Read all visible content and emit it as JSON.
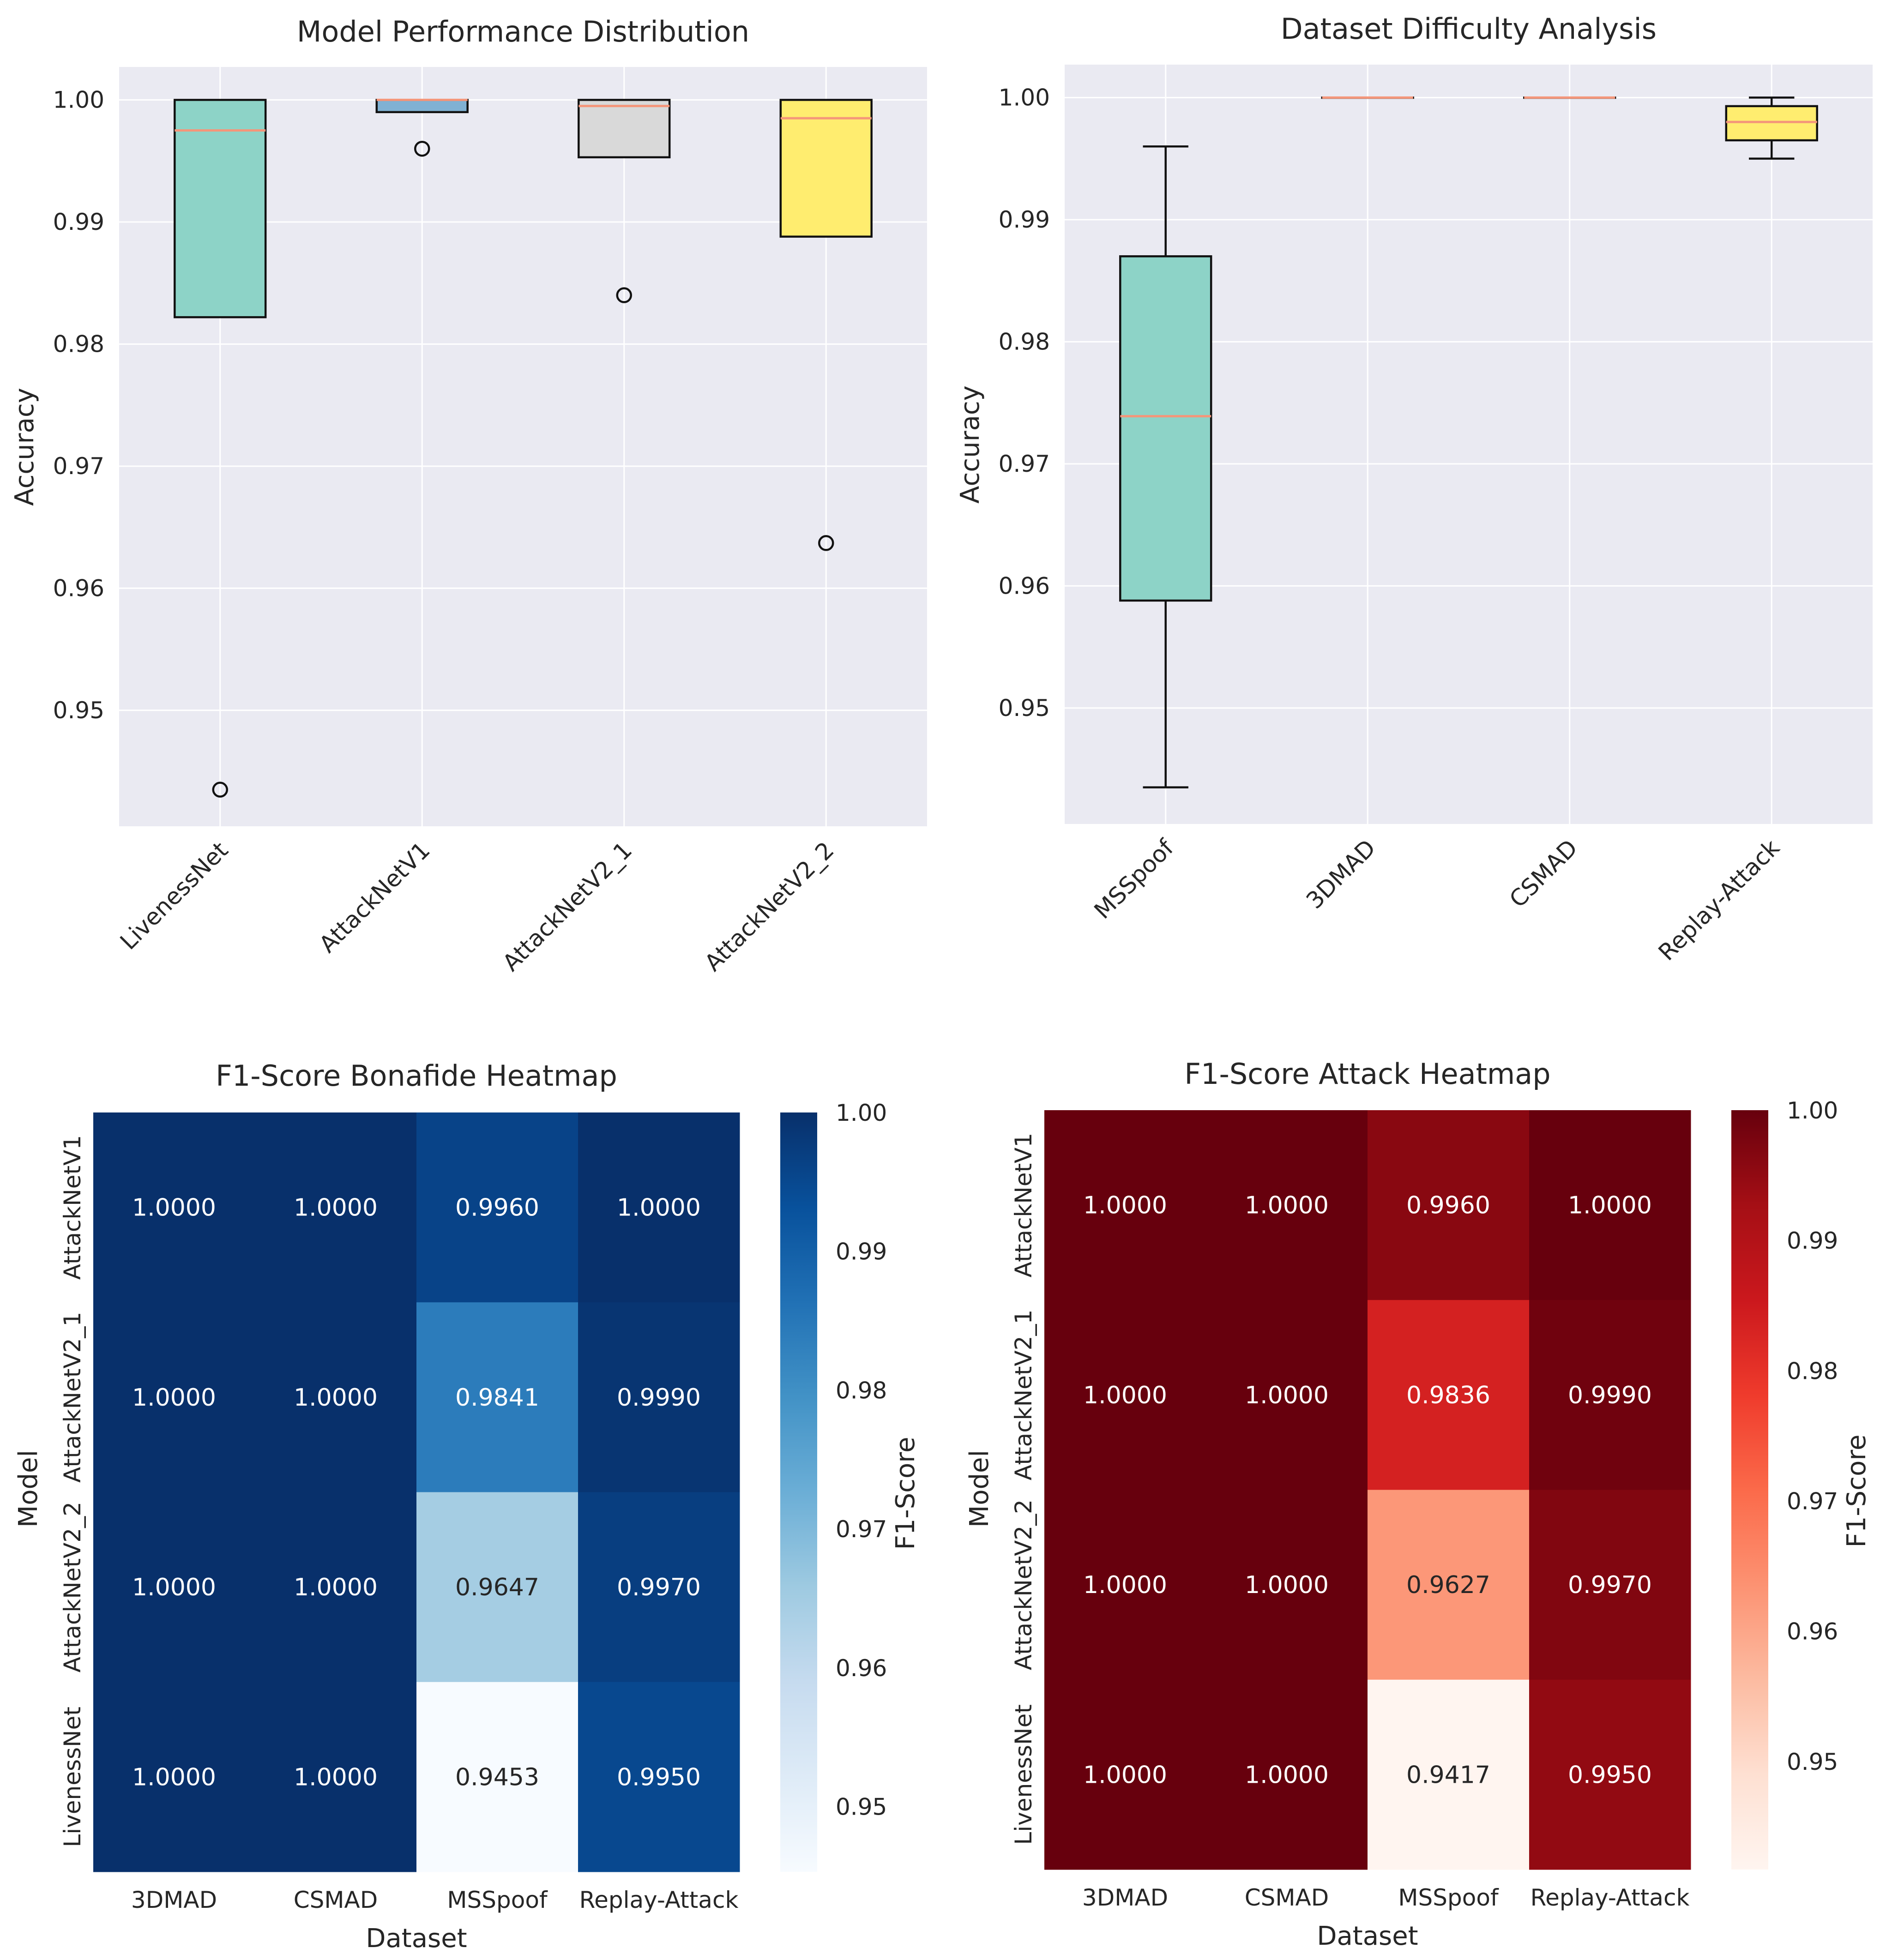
{
  "chart_data": [
    {
      "type": "box",
      "title": "Model Performance Distribution",
      "xlabel": "",
      "ylabel": "Accuracy",
      "ylim": [
        0.9405,
        1.0027
      ],
      "yticks": [
        "0.95",
        "0.96",
        "0.97",
        "0.98",
        "0.99",
        "1.00"
      ],
      "ytick_values": [
        0.95,
        0.96,
        0.97,
        0.98,
        0.99,
        1.0
      ],
      "boxes": [
        {
          "label": "LivenessNet",
          "q1": 0.9822,
          "median": 0.9975,
          "q3": 1.0,
          "whisker_low": 0.9822,
          "whisker_high": 1.0,
          "outliers": [
            0.9435
          ],
          "color": "#8dd3c7"
        },
        {
          "label": "AttackNetV1",
          "q1": 0.999,
          "median": 1.0,
          "q3": 1.0,
          "whisker_low": 0.999,
          "whisker_high": 1.0,
          "outliers": [
            0.996
          ],
          "color": "#80b1d3"
        },
        {
          "label": "AttackNetV2_1",
          "q1": 0.9953,
          "median": 0.9995,
          "q3": 1.0,
          "whisker_low": 0.9953,
          "whisker_high": 1.0,
          "outliers": [
            0.984
          ],
          "color": "#d9d9d9"
        },
        {
          "label": "AttackNetV2_2",
          "q1": 0.9888,
          "median": 0.9985,
          "q3": 1.0,
          "whisker_low": 0.9888,
          "whisker_high": 1.0,
          "outliers": [
            0.9637
          ],
          "color": "#ffed6f"
        }
      ]
    },
    {
      "type": "box",
      "title": "Dataset Difficulty Analysis",
      "xlabel": "",
      "ylabel": "Accuracy",
      "ylim": [
        0.9405,
        1.0027
      ],
      "yticks": [
        "0.95",
        "0.96",
        "0.97",
        "0.98",
        "0.99",
        "1.00"
      ],
      "ytick_values": [
        0.95,
        0.96,
        0.97,
        0.98,
        0.99,
        1.0
      ],
      "boxes": [
        {
          "label": "MSSpoof",
          "q1": 0.9588,
          "median": 0.9739,
          "q3": 0.987,
          "whisker_low": 0.9435,
          "whisker_high": 0.996,
          "outliers": [],
          "color": "#8dd3c7"
        },
        {
          "label": "3DMAD",
          "q1": 1.0,
          "median": 1.0,
          "q3": 1.0,
          "whisker_low": 1.0,
          "whisker_high": 1.0,
          "outliers": [],
          "color": "#80b1d3"
        },
        {
          "label": "CSMAD",
          "q1": 1.0,
          "median": 1.0,
          "q3": 1.0,
          "whisker_low": 1.0,
          "whisker_high": 1.0,
          "outliers": [],
          "color": "#d9d9d9"
        },
        {
          "label": "Replay-Attack",
          "q1": 0.9965,
          "median": 0.998,
          "q3": 0.9993,
          "whisker_low": 0.995,
          "whisker_high": 1.0,
          "outliers": [],
          "color": "#ffed6f"
        }
      ]
    },
    {
      "type": "heatmap",
      "title": "F1-Score Bonafide Heatmap",
      "xlabel": "Dataset",
      "ylabel": "Model",
      "columns": [
        "3DMAD",
        "CSMAD",
        "MSSpoof",
        "Replay-Attack"
      ],
      "rows": [
        "AttackNetV1",
        "AttackNetV2_1",
        "AttackNetV2_2",
        "LivenessNet"
      ],
      "values": [
        [
          1.0,
          1.0,
          0.996,
          1.0
        ],
        [
          1.0,
          1.0,
          0.9841,
          0.999
        ],
        [
          1.0,
          1.0,
          0.9647,
          0.997
        ],
        [
          1.0,
          1.0,
          0.9453,
          0.995
        ]
      ],
      "cell_labels": [
        [
          "1.0000",
          "1.0000",
          "0.9960",
          "1.0000"
        ],
        [
          "1.0000",
          "1.0000",
          "0.9841",
          "0.9990"
        ],
        [
          "1.0000",
          "1.0000",
          "0.9647",
          "0.9970"
        ],
        [
          "1.0000",
          "1.0000",
          "0.9453",
          "0.9950"
        ]
      ],
      "colormap": "Blues",
      "colorbar_label": "F1-Score",
      "colorbar_ticks": [
        "0.95",
        "0.96",
        "0.97",
        "0.98",
        "0.99",
        "1.00"
      ],
      "colorbar_tick_values": [
        0.95,
        0.96,
        0.97,
        0.98,
        0.99,
        1.0
      ],
      "vmin": 0.9453,
      "vmax": 1.0
    },
    {
      "type": "heatmap",
      "title": "F1-Score Attack Heatmap",
      "xlabel": "Dataset",
      "ylabel": "Model",
      "columns": [
        "3DMAD",
        "CSMAD",
        "MSSpoof",
        "Replay-Attack"
      ],
      "rows": [
        "AttackNetV1",
        "AttackNetV2_1",
        "AttackNetV2_2",
        "LivenessNet"
      ],
      "values": [
        [
          1.0,
          1.0,
          0.996,
          1.0
        ],
        [
          1.0,
          1.0,
          0.9836,
          0.999
        ],
        [
          1.0,
          1.0,
          0.9627,
          0.997
        ],
        [
          1.0,
          1.0,
          0.9417,
          0.995
        ]
      ],
      "cell_labels": [
        [
          "1.0000",
          "1.0000",
          "0.9960",
          "1.0000"
        ],
        [
          "1.0000",
          "1.0000",
          "0.9836",
          "0.9990"
        ],
        [
          "1.0000",
          "1.0000",
          "0.9627",
          "0.9970"
        ],
        [
          "1.0000",
          "1.0000",
          "0.9417",
          "0.9950"
        ]
      ],
      "colormap": "Reds",
      "colorbar_label": "F1-Score",
      "colorbar_ticks": [
        "0.95",
        "0.96",
        "0.97",
        "0.98",
        "0.99",
        "1.00"
      ],
      "colorbar_tick_values": [
        0.95,
        0.96,
        0.97,
        0.98,
        0.99,
        1.0
      ],
      "vmin": 0.9417,
      "vmax": 1.0
    }
  ]
}
